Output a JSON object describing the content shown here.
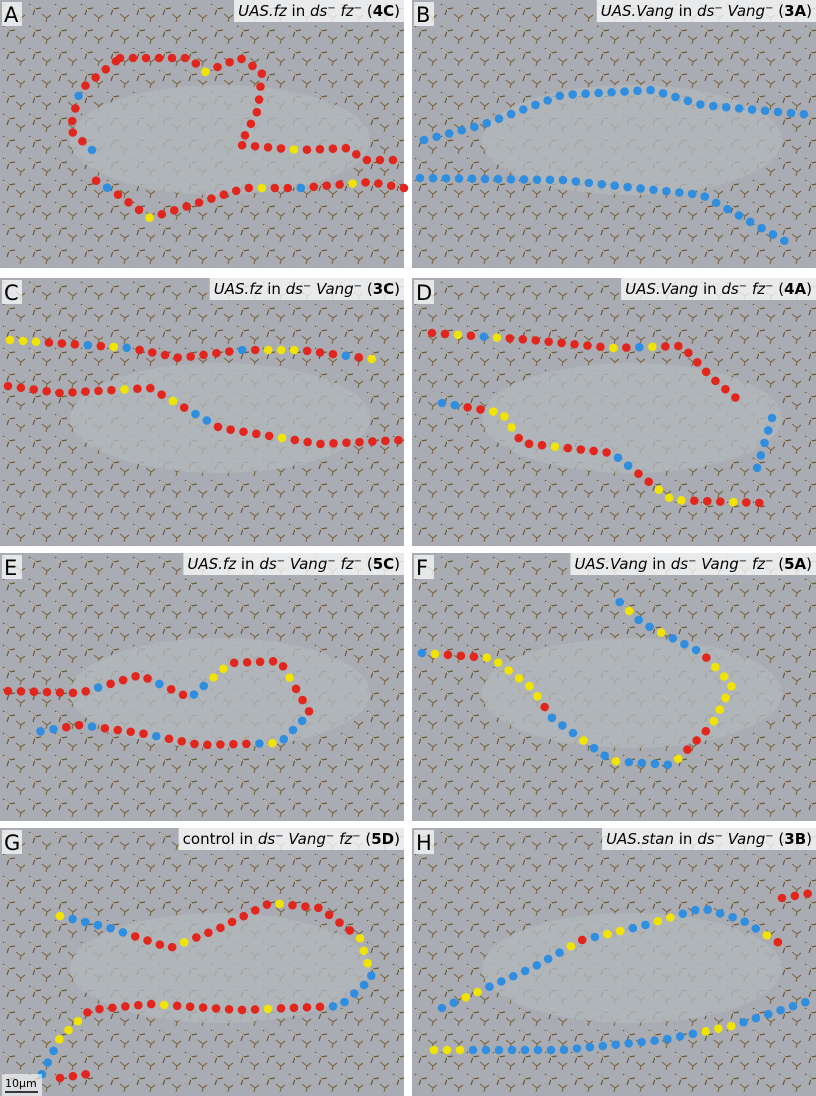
{
  "panels": [
    {
      "letter": "A",
      "caption": [
        {
          "text": "UAS.fz",
          "style": "italic"
        },
        {
          "text": " in ",
          "style": "plain"
        },
        {
          "text": "ds",
          "style": "italic"
        },
        {
          "text": "−",
          "style": "sup"
        },
        {
          "text": " fz",
          "style": "italic"
        },
        {
          "text": "−",
          "style": "sup"
        },
        {
          "text": " (",
          "style": "plain"
        },
        {
          "text": "4C",
          "style": "bold"
        },
        {
          "text": ")",
          "style": "plain"
        }
      ]
    },
    {
      "letter": "B",
      "caption": [
        {
          "text": "UAS.Vang",
          "style": "italic"
        },
        {
          "text": " in ",
          "style": "plain"
        },
        {
          "text": "ds",
          "style": "italic"
        },
        {
          "text": "−",
          "style": "sup"
        },
        {
          "text": " Vang",
          "style": "italic"
        },
        {
          "text": "−",
          "style": "sup"
        },
        {
          "text": " (",
          "style": "plain"
        },
        {
          "text": "3A",
          "style": "bold"
        },
        {
          "text": ")",
          "style": "plain"
        }
      ]
    },
    {
      "letter": "C",
      "caption": [
        {
          "text": "UAS.fz",
          "style": "italic"
        },
        {
          "text": " in ",
          "style": "plain"
        },
        {
          "text": "ds",
          "style": "italic"
        },
        {
          "text": "−",
          "style": "sup"
        },
        {
          "text": " Vang",
          "style": "italic"
        },
        {
          "text": "−",
          "style": "sup"
        },
        {
          "text": " (",
          "style": "plain"
        },
        {
          "text": "3C",
          "style": "bold"
        },
        {
          "text": ")",
          "style": "plain"
        }
      ]
    },
    {
      "letter": "D",
      "caption": [
        {
          "text": "UAS.Vang",
          "style": "italic"
        },
        {
          "text": " in ",
          "style": "plain"
        },
        {
          "text": "ds",
          "style": "italic"
        },
        {
          "text": "−",
          "style": "sup"
        },
        {
          "text": " fz",
          "style": "italic"
        },
        {
          "text": "−",
          "style": "sup"
        },
        {
          "text": " (",
          "style": "plain"
        },
        {
          "text": "4A",
          "style": "bold"
        },
        {
          "text": ")",
          "style": "plain"
        }
      ]
    },
    {
      "letter": "E",
      "caption": [
        {
          "text": "UAS.fz",
          "style": "italic"
        },
        {
          "text": " in ",
          "style": "plain"
        },
        {
          "text": "ds",
          "style": "italic"
        },
        {
          "text": "−",
          "style": "sup"
        },
        {
          "text": " Vang",
          "style": "italic"
        },
        {
          "text": "−",
          "style": "sup"
        },
        {
          "text": " fz",
          "style": "italic"
        },
        {
          "text": "−",
          "style": "sup"
        },
        {
          "text": " (",
          "style": "plain"
        },
        {
          "text": "5C",
          "style": "bold"
        },
        {
          "text": ")",
          "style": "plain"
        }
      ]
    },
    {
      "letter": "F",
      "caption": [
        {
          "text": "UAS.Vang",
          "style": "italic"
        },
        {
          "text": " in ",
          "style": "plain"
        },
        {
          "text": "ds",
          "style": "italic"
        },
        {
          "text": "−",
          "style": "sup"
        },
        {
          "text": " Vang",
          "style": "italic"
        },
        {
          "text": "−",
          "style": "sup"
        },
        {
          "text": " fz",
          "style": "italic"
        },
        {
          "text": "−",
          "style": "sup"
        },
        {
          "text": " (",
          "style": "plain"
        },
        {
          "text": "5A",
          "style": "bold"
        },
        {
          "text": ")",
          "style": "plain"
        }
      ]
    },
    {
      "letter": "G",
      "caption": [
        {
          "text": "control in ",
          "style": "plain"
        },
        {
          "text": "ds",
          "style": "italic"
        },
        {
          "text": "−",
          "style": "sup"
        },
        {
          "text": " Vang",
          "style": "italic"
        },
        {
          "text": "−",
          "style": "sup"
        },
        {
          "text": " fz",
          "style": "italic"
        },
        {
          "text": "−",
          "style": "sup"
        },
        {
          "text": " (",
          "style": "plain"
        },
        {
          "text": "5D",
          "style": "bold"
        },
        {
          "text": ")",
          "style": "plain"
        }
      ]
    },
    {
      "letter": "H",
      "caption": [
        {
          "text": "UAS.stan",
          "style": "italic"
        },
        {
          "text": " in ",
          "style": "plain"
        },
        {
          "text": "ds",
          "style": "italic"
        },
        {
          "text": "−",
          "style": "sup"
        },
        {
          "text": " Vang",
          "style": "italic"
        },
        {
          "text": "−",
          "style": "sup"
        },
        {
          "text": " (",
          "style": "plain"
        },
        {
          "text": "3B",
          "style": "bold"
        },
        {
          "text": ")",
          "style": "plain"
        }
      ]
    }
  ],
  "scale_bar": "10µm"
}
